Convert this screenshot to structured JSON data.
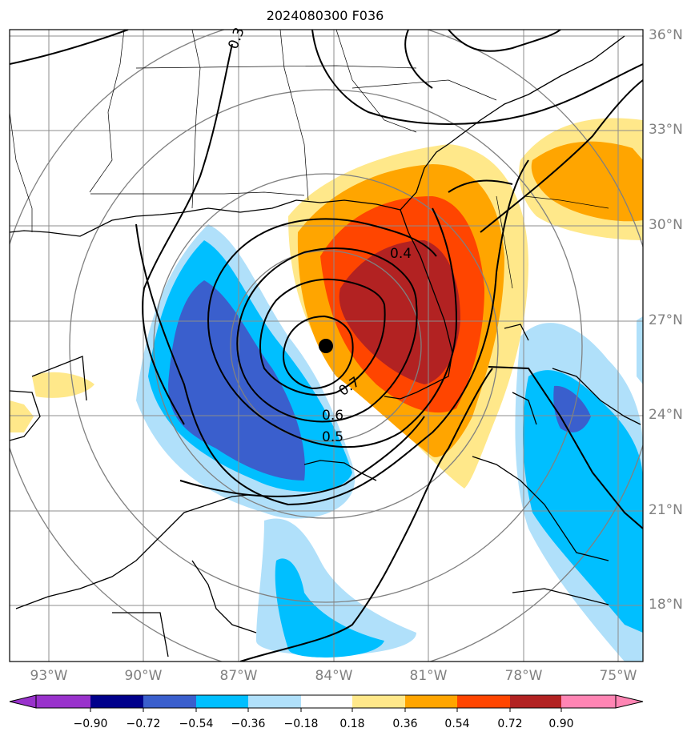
{
  "title": "2024080300 F036",
  "lat_labels": [
    "36°N",
    "33°N",
    "30°N",
    "27°N",
    "24°N",
    "21°N",
    "18°N"
  ],
  "lon_labels": [
    "93°W",
    "90°W",
    "87°W",
    "84°W",
    "81°W",
    "78°W",
    "75°W"
  ],
  "contour_labels": [
    "0.3",
    "0.4",
    "0.5",
    "0.6",
    "0.7"
  ],
  "colorbar": {
    "ticks": [
      "−0.90",
      "−0.72",
      "−0.54",
      "−0.36",
      "−0.18",
      "0.18",
      "0.36",
      "0.54",
      "0.72",
      "0.90"
    ],
    "colors": [
      "#9932cc",
      "#00008b",
      "#3a5fcd",
      "#00bfff",
      "#b0e0fa",
      "#ffffff",
      "#ffe88a",
      "#ffa500",
      "#ff4500",
      "#b22222",
      "#ff85b4"
    ]
  },
  "colors": {
    "gridline": "#8c8c8c",
    "range_rings": "#808080",
    "coast": "#000000",
    "storm_center": "#000000"
  },
  "chart_data": {
    "type": "heatmap",
    "extent": {
      "lon": [
        -95,
        -75
      ],
      "lat": [
        16.5,
        36.5
      ]
    },
    "storm_center": {
      "lon": -84.0,
      "lat": 26.2
    },
    "contour_levels": [
      0.3,
      0.4,
      0.5,
      0.6,
      0.7
    ],
    "fill_levels": [
      -0.9,
      -0.72,
      -0.54,
      -0.36,
      -0.18,
      0.18,
      0.36,
      0.54,
      0.72,
      0.9
    ],
    "grid": true
  }
}
